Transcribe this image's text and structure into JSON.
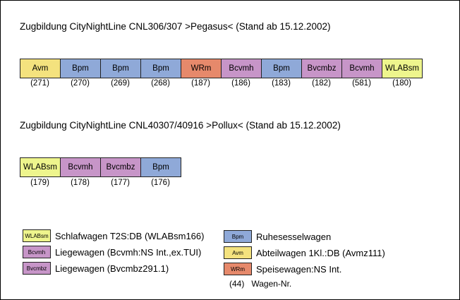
{
  "train1": {
    "title": "Zugbildung CityNightLine CNL306/307 >Pegasus< (Stand ab 15.12.2002)",
    "cars": [
      {
        "type": "Avm",
        "number": "(271)"
      },
      {
        "type": "Bpm",
        "number": "(270)"
      },
      {
        "type": "Bpm",
        "number": "(269)"
      },
      {
        "type": "Bpm",
        "number": "(268)"
      },
      {
        "type": "WRm",
        "number": "(187)"
      },
      {
        "type": "Bcvmh",
        "number": "(186)"
      },
      {
        "type": "Bpm",
        "number": "(183)"
      },
      {
        "type": "Bvcmbz",
        "number": "(182)"
      },
      {
        "type": "Bcvmh",
        "number": "(581)"
      },
      {
        "type": "WLABsm",
        "number": "(180)"
      }
    ]
  },
  "train2": {
    "title": "Zugbildung CityNightLine CNL40307/40916 >Pollux< (Stand ab 15.12.2002)",
    "cars": [
      {
        "type": "WLABsm",
        "number": "(179)"
      },
      {
        "type": "Bcvmh",
        "number": "(178)"
      },
      {
        "type": "Bvcmbz",
        "number": "(177)"
      },
      {
        "type": "Bpm",
        "number": "(176)"
      }
    ]
  },
  "legend": {
    "left": [
      {
        "code": "WLABsm",
        "text": "Schlafwagen T2S:DB (WLABsm166)"
      },
      {
        "code": "Bcvmh",
        "text": "Liegewagen (Bcvmh:NS Int.,ex.TUI)"
      },
      {
        "code": "Bvcmbz",
        "text": "Liegewagen (Bvcmbz291.1)"
      }
    ],
    "right": [
      {
        "code": "Bpm",
        "text": "Ruhesesselwagen"
      },
      {
        "code": "Avm",
        "text": "Abteilwagen 1Kl.:DB (Avmz111)"
      },
      {
        "code": "WRm",
        "text": "Speisewagen:NS Int."
      }
    ],
    "wagon_nr_example": "(44)",
    "wagon_nr_label": "Wagen-Nr."
  },
  "colors": {
    "Avm": "#f4e27e",
    "Bpm": "#8fa9d8",
    "WRm": "#e6896b",
    "Bcvmh": "#c795c8",
    "Bvcmbz": "#c795c8",
    "WLABsm": "#eef58d"
  }
}
